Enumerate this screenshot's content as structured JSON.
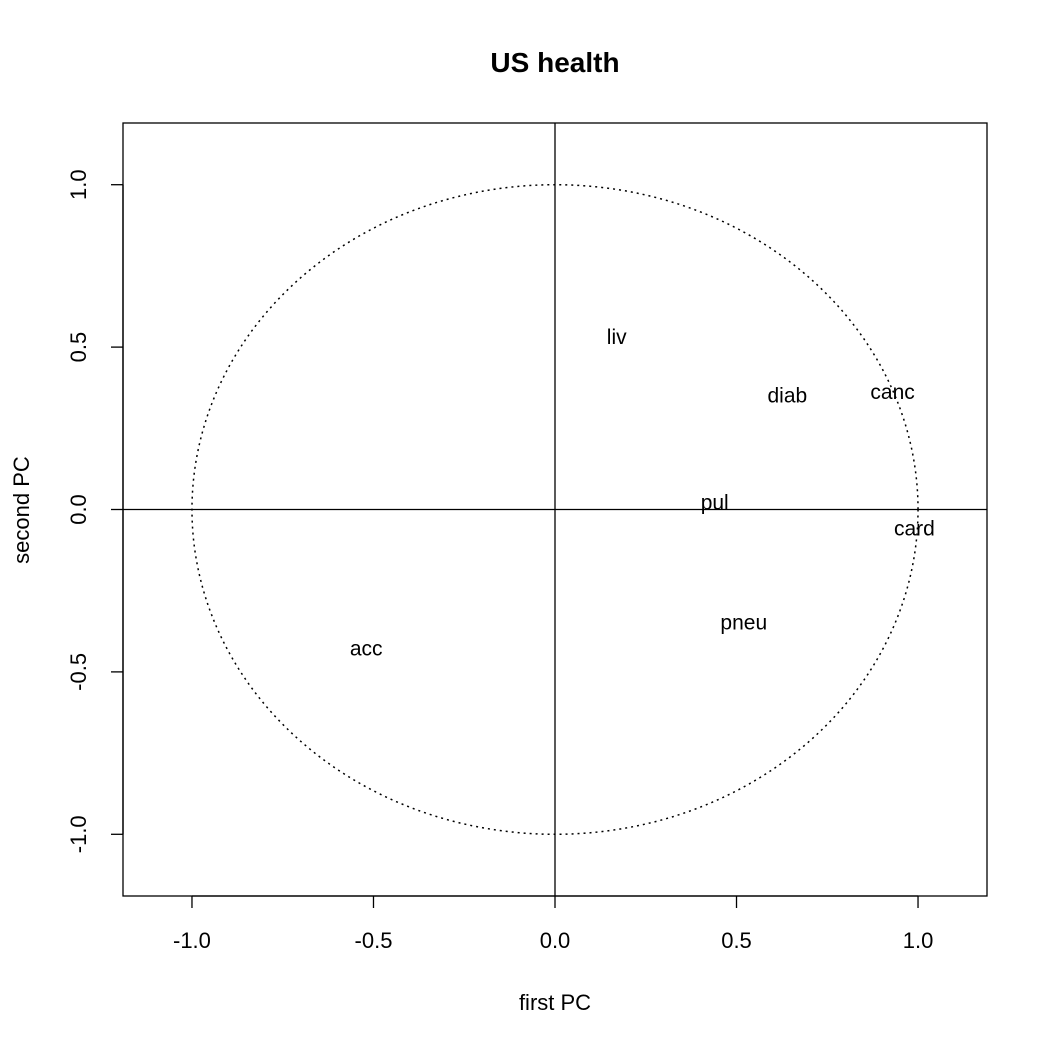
{
  "chart_data": {
    "type": "scatter",
    "title": "US health",
    "xlabel": "first PC",
    "ylabel": "second PC",
    "xlim": [
      -1.19,
      1.19
    ],
    "ylim": [
      -1.19,
      1.19
    ],
    "xticks": [
      "-1.0",
      "-0.5",
      "0.0",
      "0.5",
      "1.0"
    ],
    "yticks": [
      "-1.0",
      "-0.5",
      "0.0",
      "0.5",
      "1.0"
    ],
    "xtick_values": [
      -1.0,
      -0.5,
      0.0,
      0.5,
      1.0
    ],
    "ytick_values": [
      -1.0,
      -0.5,
      0.0,
      0.5,
      1.0
    ],
    "reference_lines": {
      "x": 0,
      "y": 0
    },
    "unit_circle": {
      "radius": 1,
      "style": "dotted"
    },
    "grid": false,
    "points": [
      {
        "label": "liv",
        "x": 0.17,
        "y": 0.53
      },
      {
        "label": "diab",
        "x": 0.64,
        "y": 0.35
      },
      {
        "label": "canc",
        "x": 0.93,
        "y": 0.36
      },
      {
        "label": "pul",
        "x": 0.44,
        "y": 0.02
      },
      {
        "label": "card",
        "x": 0.99,
        "y": -0.06
      },
      {
        "label": "pneu",
        "x": 0.52,
        "y": -0.35
      },
      {
        "label": "acc",
        "x": -0.52,
        "y": -0.43
      }
    ]
  }
}
